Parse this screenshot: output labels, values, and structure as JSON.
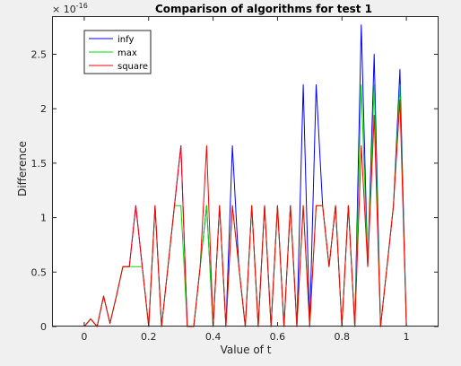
{
  "chart_data": {
    "type": "line",
    "title": "Comparison of algorithms for test 1",
    "xlabel": "Value of t",
    "ylabel": "Difference",
    "y_exponent_label": "× 10",
    "y_exponent_power": "-16",
    "xlim": [
      -0.1,
      1.1
    ],
    "ylim": [
      0,
      2.85
    ],
    "xticks": [
      0,
      0.2,
      0.4,
      0.6,
      0.8,
      1
    ],
    "xtick_labels": [
      "0",
      "0.2",
      "0.4",
      "0.6",
      "0.8",
      "1"
    ],
    "yticks": [
      0,
      0.5,
      1,
      1.5,
      2,
      2.5
    ],
    "ytick_labels": [
      "0",
      "0.5",
      "1",
      "1.5",
      "2",
      "2.5"
    ],
    "grid": false,
    "legend_position": "top-left",
    "x": [
      0,
      0.02,
      0.04,
      0.06,
      0.08,
      0.1,
      0.12,
      0.14,
      0.16,
      0.18,
      0.2,
      0.22,
      0.24,
      0.26,
      0.28,
      0.3,
      0.32,
      0.34,
      0.36,
      0.38,
      0.4,
      0.42,
      0.44,
      0.46,
      0.48,
      0.5,
      0.52,
      0.54,
      0.56,
      0.58,
      0.6,
      0.62,
      0.64,
      0.66,
      0.68,
      0.7,
      0.72,
      0.74,
      0.76,
      0.78,
      0.8,
      0.82,
      0.84,
      0.86,
      0.88,
      0.9,
      0.92,
      0.94,
      0.96,
      0.98,
      1
    ],
    "series": [
      {
        "name": "infy",
        "color": "#0000ff",
        "values": [
          0,
          0.07,
          0,
          0.28,
          0.03,
          0.28,
          0.55,
          0.55,
          1.11,
          0.55,
          0,
          1.11,
          0,
          0.55,
          1.11,
          1.66,
          0,
          0,
          0.55,
          1.11,
          0,
          1.11,
          0,
          1.66,
          0.55,
          0,
          1.11,
          0,
          1.11,
          0,
          1.11,
          0,
          1.11,
          0,
          2.22,
          0,
          2.22,
          1.11,
          0.55,
          1.11,
          0,
          1.11,
          0,
          2.77,
          0.55,
          2.5,
          0,
          0.55,
          1.11,
          2.36,
          0
        ]
      },
      {
        "name": "max",
        "color": "#00dd00",
        "values": [
          0,
          0.07,
          0,
          0.28,
          0.03,
          0.28,
          0.55,
          0.55,
          0.55,
          0.55,
          0,
          1.11,
          0,
          0.55,
          1.11,
          1.11,
          0,
          0,
          0.55,
          1.11,
          0,
          1.11,
          0,
          1.11,
          0.55,
          0,
          1.11,
          0,
          1.11,
          0,
          1.11,
          0,
          1.11,
          0,
          1.11,
          0,
          1.11,
          1.11,
          0.55,
          1.11,
          0,
          1.11,
          0,
          2.22,
          0.55,
          2.22,
          0,
          0.55,
          1.11,
          2.22,
          0
        ]
      },
      {
        "name": "square",
        "color": "#ff0000",
        "values": [
          0,
          0.07,
          0,
          0.28,
          0.03,
          0.28,
          0.55,
          0.55,
          1.11,
          0.55,
          0,
          1.11,
          0,
          0.55,
          1.11,
          1.66,
          0,
          0,
          0.55,
          1.66,
          0,
          1.11,
          0,
          1.11,
          0.55,
          0,
          1.11,
          0,
          1.11,
          0,
          1.11,
          0,
          1.11,
          0,
          1.11,
          0,
          1.11,
          1.11,
          0.55,
          1.11,
          0,
          1.11,
          0,
          1.66,
          0.55,
          1.94,
          0,
          0.55,
          1.11,
          2.08,
          0
        ]
      }
    ]
  }
}
